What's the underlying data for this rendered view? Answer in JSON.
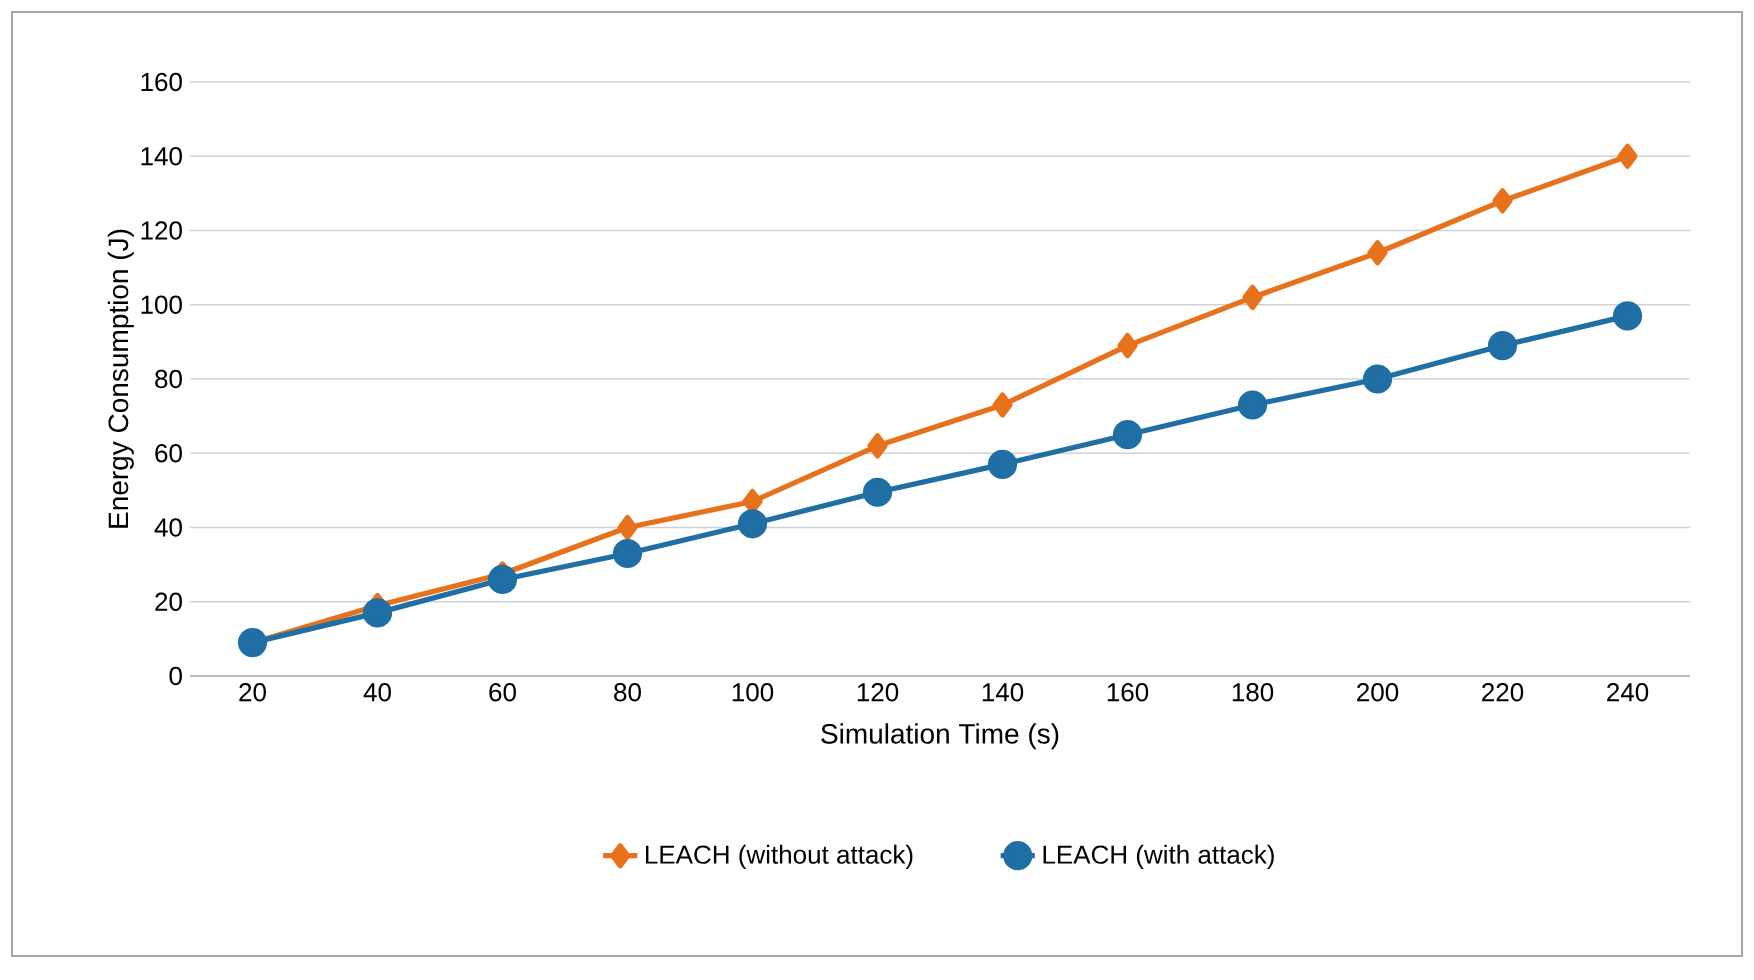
{
  "chart_data": {
    "type": "line",
    "xlabel": "Simulation Time (s)",
    "ylabel": "Energy Consumption (J)",
    "categories": [
      "20",
      "40",
      "60",
      "80",
      "100",
      "120",
      "140",
      "160",
      "180",
      "200",
      "220",
      "240"
    ],
    "series": [
      {
        "name": "LEACH (without attack)",
        "color": "#e8711c",
        "marker": "diamond",
        "values": [
          9,
          19,
          27.5,
          40,
          47,
          62,
          73,
          89,
          102,
          114,
          128,
          140
        ]
      },
      {
        "name": "LEACH (with attack)",
        "color": "#1f6fa5",
        "marker": "circle",
        "values": [
          9,
          17,
          26,
          33,
          41,
          49.5,
          57,
          65,
          73,
          80,
          89,
          97
        ]
      }
    ],
    "ylim": [
      0,
      160
    ],
    "yticks": [
      0,
      20,
      40,
      60,
      80,
      100,
      120,
      140,
      160
    ],
    "grid": "y",
    "legend": "bottom",
    "line_style": "solid"
  }
}
